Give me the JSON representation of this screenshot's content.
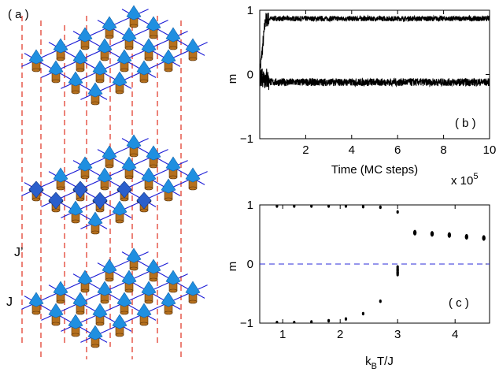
{
  "figure": {
    "panel_a": {
      "label": "( a )",
      "coupling_interlayer": "J’",
      "coupling_intralayer": "J",
      "colors": {
        "lattice": "#1a1ad6",
        "vertical": "#e0301e",
        "spin_up": "#1f8fe0",
        "spin_down": "#2a5fcc",
        "cylinder": "#b5701e"
      }
    },
    "panel_b": {
      "label": "( b )",
      "xlabel": "Time (MC steps)",
      "ylabel": "m",
      "multiplier": "x 10",
      "multiplier_exp": "5",
      "xticks": [
        "2",
        "4",
        "6",
        "8",
        "10"
      ],
      "yticks": [
        "−1",
        "0",
        "1"
      ]
    },
    "panel_c": {
      "label": "( c )",
      "xlabel_prefix": "k",
      "xlabel_sub": "B",
      "xlabel_suffix": "T/J",
      "ylabel": "m",
      "xticks": [
        "1",
        "2",
        "3",
        "4"
      ],
      "yticks": [
        "−1",
        "0",
        "1"
      ]
    }
  },
  "chart_data": [
    {
      "type": "line",
      "panel": "b",
      "xlabel": "Time (MC steps)",
      "ylabel": "m",
      "xlim": [
        0,
        10
      ],
      "ylim": [
        -1,
        1
      ],
      "x_scale_factor": "x 10^5",
      "series": [
        {
          "x": [
            0,
            0.25,
            0.5,
            2,
            4,
            6,
            8,
            10
          ],
          "y": [
            0,
            0.85,
            0.87,
            0.87,
            0.87,
            0.87,
            0.87,
            0.87
          ],
          "noise": 0.04
        },
        {
          "x": [
            0,
            0.25,
            0.5,
            2,
            4,
            6,
            8,
            10
          ],
          "y": [
            0,
            -0.05,
            -0.12,
            -0.12,
            -0.12,
            -0.12,
            -0.12,
            -0.12
          ],
          "noise": 0.06
        }
      ]
    },
    {
      "type": "scatter",
      "panel": "c",
      "xlabel": "k_B T/J",
      "ylabel": "m",
      "xlim": [
        0.6,
        4.6
      ],
      "ylim": [
        -1,
        1
      ],
      "reference_line_y": 0,
      "series": [
        {
          "x": [
            0.9,
            1.2,
            1.5,
            1.8,
            2.1,
            2.4,
            2.7,
            3.0
          ],
          "y": [
            0.98,
            0.98,
            0.98,
            0.98,
            0.98,
            0.97,
            0.96,
            0.88
          ]
        },
        {
          "x": [
            0.9,
            1.2,
            1.5,
            1.8,
            2.1,
            2.4,
            2.7,
            3.0
          ],
          "y": [
            -0.99,
            -0.99,
            -0.98,
            -0.96,
            -0.93,
            -0.84,
            -0.63,
            -0.15
          ]
        },
        {
          "x": [
            3.0,
            3.0,
            3.0,
            3.0,
            3.0,
            3.0
          ],
          "y": [
            -0.05,
            -0.08,
            -0.1,
            -0.12,
            -0.15,
            -0.18
          ]
        },
        {
          "x": [
            3.3,
            3.6,
            3.9,
            4.2,
            4.5
          ],
          "y": [
            0.53,
            0.51,
            0.49,
            0.46,
            0.44
          ]
        }
      ]
    }
  ]
}
